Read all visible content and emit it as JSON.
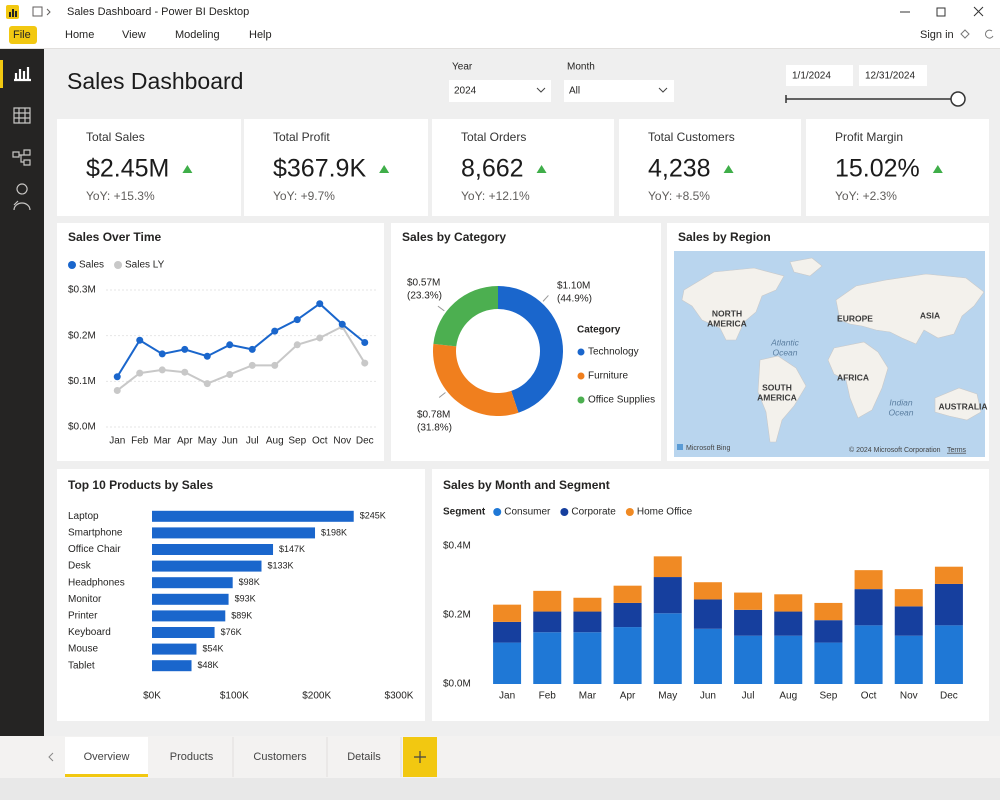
{
  "window": {
    "title": "Sales Dashboard - Power BI Desktop"
  },
  "menu": {
    "items": [
      "File",
      "Home",
      "View",
      "Modeling",
      "Help"
    ],
    "sign_in": "Sign in"
  },
  "header": {
    "title": "Sales Dashboard"
  },
  "filters": [
    {
      "label": "Year",
      "value": "2024"
    },
    {
      "label": "Month",
      "value": "All"
    }
  ],
  "date_range": {
    "start": "1/1/2024",
    "end": "12/31/2024"
  },
  "kpis": [
    {
      "label": "Total Sales",
      "value": "$2.45M",
      "yoy": "YoY: +15.3%"
    },
    {
      "label": "Total Profit",
      "value": "$367.9K",
      "yoy": "YoY: +9.7%"
    },
    {
      "label": "Total Orders",
      "value": "8,662",
      "yoy": "YoY: +12.1%"
    },
    {
      "label": "Total Customers",
      "value": "4,238",
      "yoy": "YoY: +8.5%"
    },
    {
      "label": "Profit Margin",
      "value": "15.02%",
      "yoy": "YoY: +2.3%"
    }
  ],
  "map": {
    "title": "Sales by Region",
    "labels": [
      [
        "NORTH",
        "AMERICA"
      ],
      [
        "EUROPE"
      ],
      [
        "ASIA"
      ],
      [
        "SOUTH",
        "AMERICA"
      ],
      [
        "AFRICA"
      ],
      [
        "AUSTRALIA"
      ]
    ],
    "oceans": [
      [
        "Atlantic",
        "Ocean"
      ],
      [
        "Indian",
        "Ocean"
      ]
    ],
    "provider": "Microsoft Bing",
    "copyright": "© 2024 Microsoft Corporation",
    "terms": "Terms"
  },
  "chart_data": [
    {
      "type": "line",
      "title": "Sales Over Time",
      "categories": [
        "Jan",
        "Feb",
        "Mar",
        "Apr",
        "May",
        "Jun",
        "Jul",
        "Aug",
        "Sep",
        "Oct",
        "Nov",
        "Dec"
      ],
      "series": [
        {
          "name": "Sales",
          "color": "#1a66cc",
          "values": [
            0.11,
            0.19,
            0.16,
            0.17,
            0.155,
            0.18,
            0.17,
            0.21,
            0.235,
            0.27,
            0.225,
            0.185
          ]
        },
        {
          "name": "Sales LY",
          "color": "#c8c8c8",
          "values": [
            0.08,
            0.118,
            0.125,
            0.12,
            0.095,
            0.115,
            0.135,
            0.135,
            0.18,
            0.195,
            0.22,
            0.14
          ]
        }
      ],
      "ylim": [
        0,
        0.3
      ],
      "yticks": [
        {
          "value": 0,
          "label": "$0.0M"
        },
        {
          "value": 0.1,
          "label": "$0.1M"
        },
        {
          "value": 0.2,
          "label": "$0.2M"
        },
        {
          "value": 0.3,
          "label": "$0.3M"
        }
      ],
      "grid": true,
      "legend": "top-left"
    },
    {
      "type": "donut",
      "title": "Sales by Category",
      "categories": [
        "Technology",
        "Furniture",
        "Office Supplies"
      ],
      "values": [
        1.1,
        0.78,
        0.57
      ],
      "value_labels": [
        "$1.10M",
        "$0.78M",
        "$0.57M"
      ],
      "percent_labels": [
        "(44.9%)",
        "(31.8%)",
        "(23.3%)"
      ],
      "colors": [
        "#1a66cc",
        "#f07f1e",
        "#4caf50"
      ],
      "legend_title": "Category",
      "legend": "right"
    },
    {
      "type": "hbar",
      "title": "Top 10 Products by Sales",
      "categories": [
        "Laptop",
        "Smartphone",
        "Office Chair",
        "Desk",
        "Headphones",
        "Monitor",
        "Printer",
        "Keyboard",
        "Mouse",
        "Tablet"
      ],
      "values": [
        245,
        198,
        147,
        133,
        98,
        93,
        89,
        76,
        54,
        48
      ],
      "value_labels": [
        "$245K",
        "$198K",
        "$147K",
        "$133K",
        "$98K",
        "$93K",
        "$89K",
        "$76K",
        "$54K",
        "$48K"
      ],
      "color": "#1a66cc",
      "xlim": [
        0,
        300
      ],
      "xticks": [
        {
          "value": 0,
          "label": "$0K"
        },
        {
          "value": 100,
          "label": "$100K"
        },
        {
          "value": 200,
          "label": "$200K"
        },
        {
          "value": 300,
          "label": "$300K"
        }
      ]
    },
    {
      "type": "stacked_bar",
      "title": "Sales by Month and Segment",
      "legend_title": "Segment",
      "categories": [
        "Jan",
        "Feb",
        "Mar",
        "Apr",
        "May",
        "Jun",
        "Jul",
        "Aug",
        "Sep",
        "Oct",
        "Nov",
        "Dec"
      ],
      "series": [
        {
          "name": "Consumer",
          "color": "#1f78d6",
          "values": [
            0.12,
            0.15,
            0.15,
            0.165,
            0.205,
            0.16,
            0.14,
            0.14,
            0.12,
            0.17,
            0.14,
            0.17
          ]
        },
        {
          "name": "Corporate",
          "color": "#163f9e",
          "values": [
            0.06,
            0.06,
            0.06,
            0.07,
            0.105,
            0.085,
            0.075,
            0.07,
            0.065,
            0.105,
            0.085,
            0.12
          ]
        },
        {
          "name": "Home Office",
          "color": "#f08a24",
          "values": [
            0.05,
            0.06,
            0.04,
            0.05,
            0.06,
            0.05,
            0.05,
            0.05,
            0.05,
            0.055,
            0.05,
            0.05
          ]
        }
      ],
      "ylim": [
        0,
        0.4
      ],
      "yticks": [
        {
          "value": 0,
          "label": "$0.0M"
        },
        {
          "value": 0.2,
          "label": "$0.2M"
        },
        {
          "value": 0.4,
          "label": "$0.4M"
        }
      ],
      "legend": "top-left"
    }
  ],
  "tabs": [
    "Overview",
    "Products",
    "Customers",
    "Details"
  ]
}
